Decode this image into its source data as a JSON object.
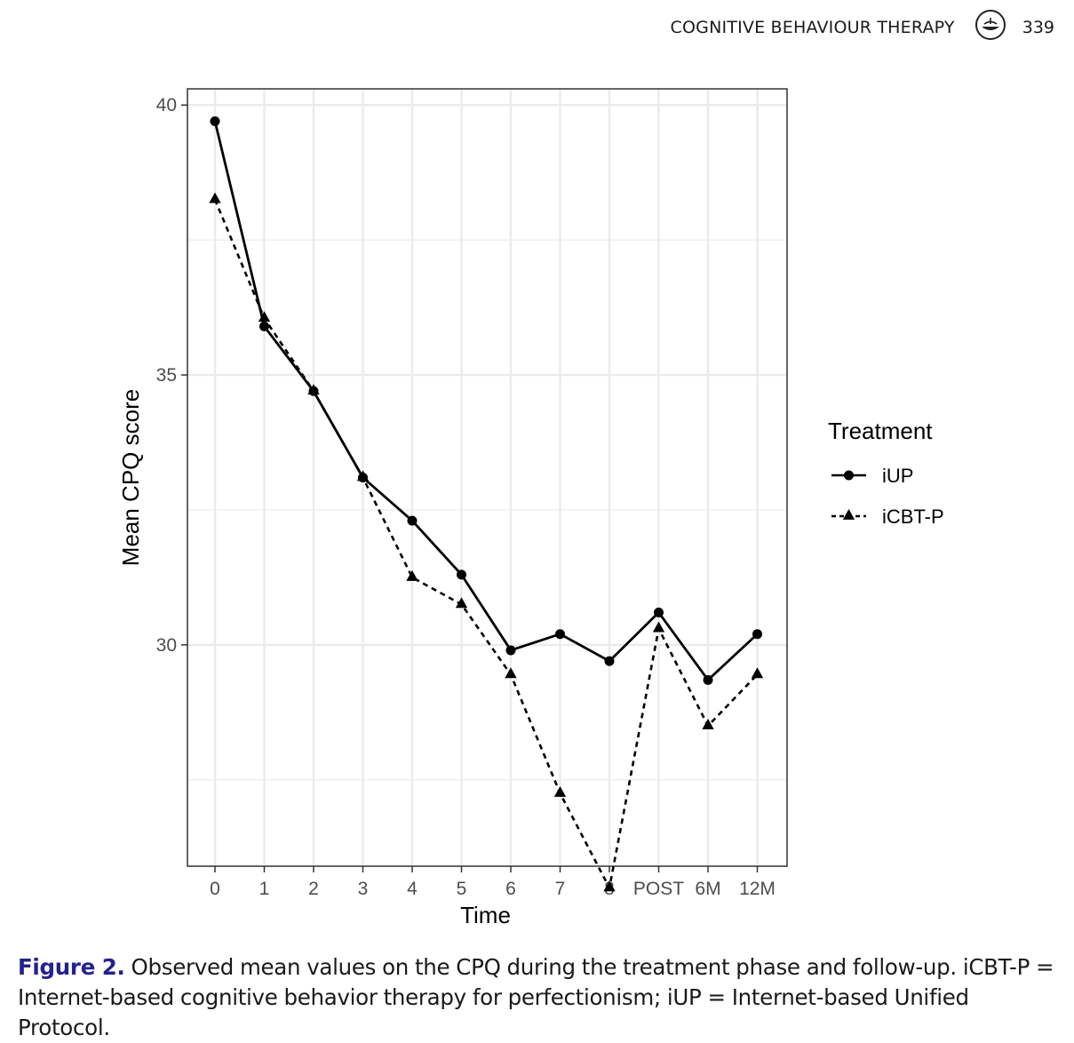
{
  "header": {
    "journal": "COGNITIVE BEHAVIOUR THERAPY",
    "page": "339",
    "logo_icon": "publisher-logo-icon"
  },
  "caption": {
    "label": "Figure 2.",
    "text": "Observed mean values on the CPQ during the treatment phase and follow-up. iCBT-P = Internet-based cognitive behavior therapy for perfectionism; iUP = Internet-based Unified Protocol."
  },
  "chart_data": {
    "type": "line",
    "title": "",
    "xlabel": "Time",
    "ylabel": "Mean CPQ score",
    "categories": [
      "0",
      "1",
      "2",
      "3",
      "4",
      "5",
      "6",
      "7",
      "8",
      "POST",
      "6M",
      "12M"
    ],
    "ylim": [
      25.9,
      40.3
    ],
    "yticks": [
      30,
      35,
      40
    ],
    "grid": true,
    "legend": {
      "title": "Treatment",
      "position": "right"
    },
    "series": [
      {
        "name": "iUP",
        "marker": "circle",
        "line": "solid",
        "values": [
          39.7,
          35.9,
          34.7,
          33.1,
          32.3,
          31.3,
          29.9,
          30.2,
          29.7,
          30.6,
          29.35,
          30.2
        ]
      },
      {
        "name": "iCBT-P",
        "marker": "triangle",
        "line": "dashed",
        "values": [
          38.25,
          36.05,
          34.7,
          33.1,
          31.25,
          30.75,
          29.45,
          27.25,
          25.5,
          30.3,
          28.5,
          29.45
        ]
      }
    ],
    "colors": {
      "line": "#000000",
      "grid": "#ebebeb",
      "panel_border": "#333333"
    }
  }
}
